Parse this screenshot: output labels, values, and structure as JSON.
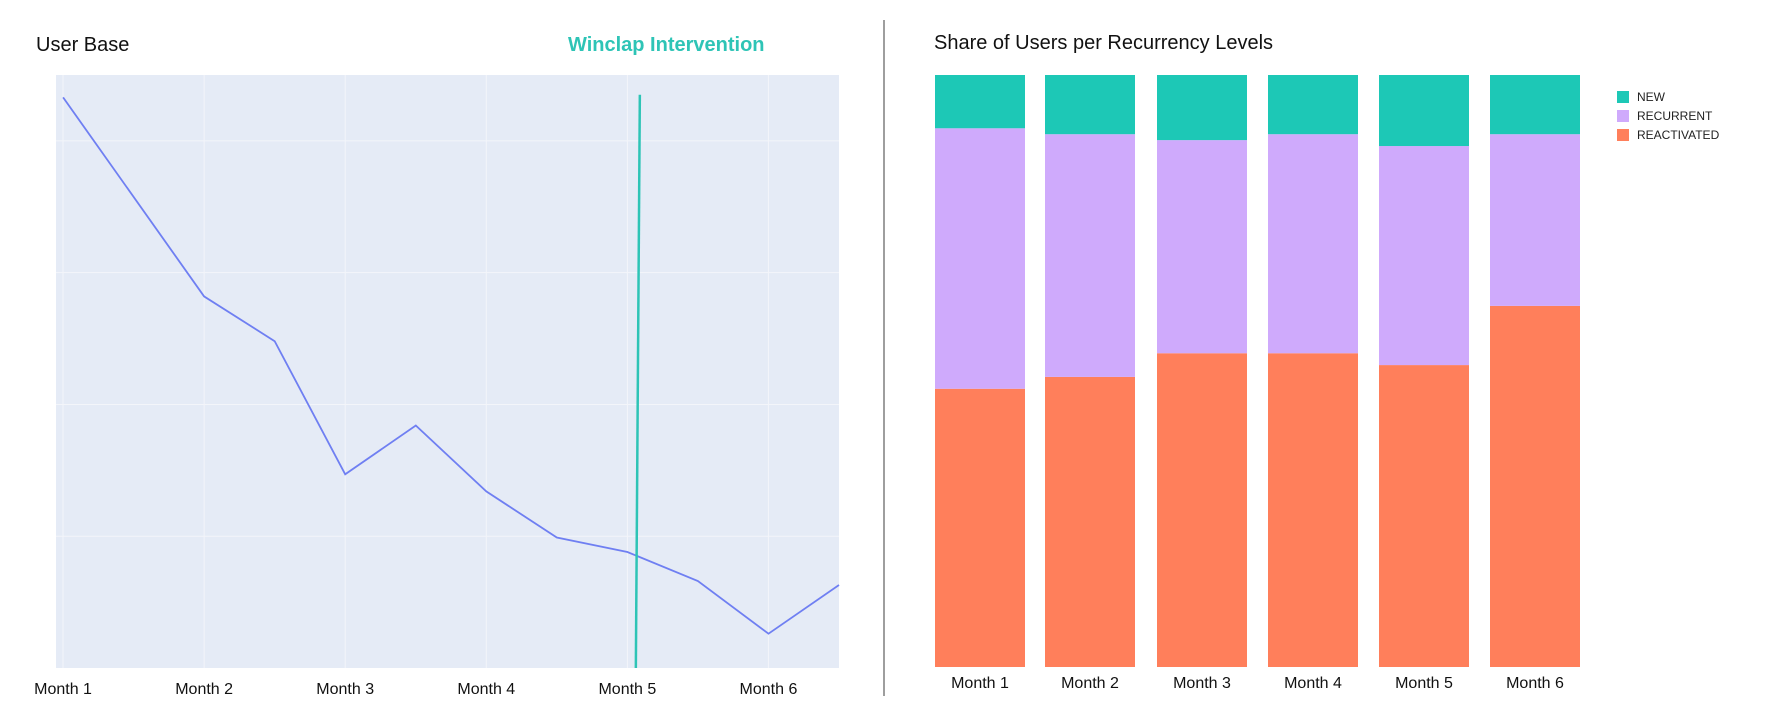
{
  "colors": {
    "plot_bg": "#e5ebf6",
    "grid": "#f3f5fa",
    "line": "#6f7ff2",
    "intervention": "#2ec4b6",
    "new": "#1dc8b6",
    "recurrent": "#cfaafc",
    "reactivated": "#ff7f5b",
    "divider": "#9e9e9e"
  },
  "chart_data": [
    {
      "type": "line",
      "title": "User Base",
      "annotation": "Winclap Intervention",
      "categories": [
        "Month 1",
        "Month 2",
        "Month 3",
        "Month 4",
        "Month 5",
        "Month 6"
      ],
      "x": [
        0.0,
        1.0,
        1.5,
        2.0,
        2.5,
        3.0,
        3.5,
        4.0,
        4.5,
        5.0,
        5.5
      ],
      "y": [
        4.33,
        2.82,
        2.48,
        1.47,
        1.84,
        1.34,
        0.99,
        0.88,
        0.66,
        0.26,
        0.63
      ],
      "xlim": [
        -0.05,
        5.5
      ],
      "ylim": [
        0,
        4.5
      ],
      "grid": true,
      "xlabel": "",
      "ylabel": "",
      "intervention_x": 4.06
    },
    {
      "type": "bar",
      "stacked": true,
      "title": "Share of Users per Recurrency Levels",
      "categories": [
        "Month 1",
        "Month 2",
        "Month 3",
        "Month 4",
        "Month 5",
        "Month 6"
      ],
      "series": [
        {
          "name": "REACTIVATED",
          "values": [
            47,
            49,
            53,
            53,
            51,
            61
          ]
        },
        {
          "name": "RECURRENT",
          "values": [
            44,
            41,
            36,
            37,
            37,
            29
          ]
        },
        {
          "name": "NEW",
          "values": [
            9,
            10,
            11,
            10,
            12,
            10
          ]
        }
      ],
      "legend": [
        "NEW",
        "RECURRENT",
        "REACTIVATED"
      ],
      "legend_position": "top-right",
      "ylim": [
        0,
        100
      ]
    }
  ]
}
